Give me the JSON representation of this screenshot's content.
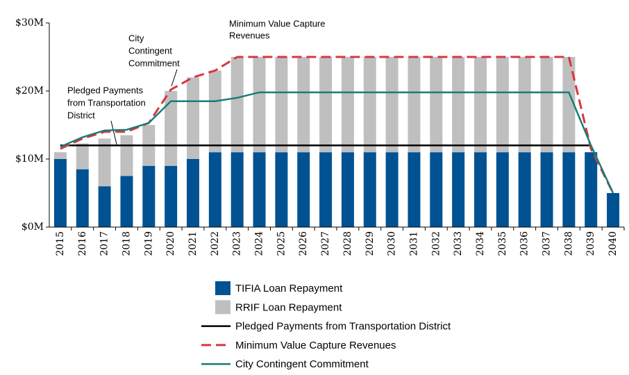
{
  "chart_data": {
    "type": "bar",
    "stacked": true,
    "categories": [
      "2015",
      "2016",
      "2017",
      "2018",
      "2019",
      "2020",
      "2021",
      "2022",
      "2023",
      "2024",
      "2025",
      "2026",
      "2027",
      "2028",
      "2029",
      "2030",
      "2031",
      "2032",
      "2033",
      "2034",
      "2035",
      "2036",
      "2037",
      "2038",
      "2039",
      "2040"
    ],
    "series": [
      {
        "name": "TIFIA Loan Repayment",
        "type": "bar",
        "color": "#005293",
        "values": [
          10,
          8.5,
          6,
          7.5,
          9,
          9,
          10,
          11,
          11,
          11,
          11,
          11,
          11,
          11,
          11,
          11,
          11,
          11,
          11,
          11,
          11,
          11,
          11,
          11,
          11,
          5
        ]
      },
      {
        "name": "RRIF Loan Repayment",
        "type": "bar",
        "color": "#bfbfbf",
        "values": [
          1,
          3.8,
          7,
          6,
          6,
          11,
          12,
          12,
          14,
          14,
          14,
          14,
          14,
          14,
          14,
          14,
          14,
          14,
          14,
          14,
          14,
          14,
          14,
          14,
          0,
          0
        ]
      },
      {
        "name": "Pledged Payments from Transportation District",
        "type": "line",
        "color": "#000000",
        "dashed": false,
        "values": [
          12,
          12,
          12,
          12,
          12,
          12,
          12,
          12,
          12,
          12,
          12,
          12,
          12,
          12,
          12,
          12,
          12,
          12,
          12,
          12,
          12,
          12,
          12,
          12,
          12,
          null
        ]
      },
      {
        "name": "Minimum Value Capture Revenues",
        "type": "line",
        "color": "#d9363e",
        "dashed": true,
        "values": [
          11.5,
          13,
          14,
          14,
          15.3,
          20.2,
          22,
          23,
          25,
          25,
          25,
          25,
          25,
          25,
          25,
          25,
          25,
          25,
          25,
          25,
          25,
          25,
          25,
          25,
          11.5,
          5
        ]
      },
      {
        "name": "City Contingent Commitment",
        "type": "line",
        "color": "#177d78",
        "dashed": false,
        "values": [
          11.8,
          13.2,
          14.2,
          14.3,
          15.3,
          18.5,
          18.5,
          18.5,
          19,
          19.8,
          19.8,
          19.8,
          19.8,
          19.8,
          19.8,
          19.8,
          19.8,
          19.8,
          19.8,
          19.8,
          19.8,
          19.8,
          19.8,
          19.8,
          12,
          5
        ]
      }
    ],
    "ylim": [
      0,
      30
    ],
    "yticks": [
      {
        "value": 0,
        "label": "$0M"
      },
      {
        "value": 10,
        "label": "$10M"
      },
      {
        "value": 20,
        "label": "$20M"
      },
      {
        "value": 30,
        "label": "$30M"
      }
    ],
    "grid": false,
    "legend": "bottom",
    "annotations": [
      {
        "lines": [
          "Minimum Value Capture",
          "Revenues"
        ]
      },
      {
        "lines": [
          "City",
          "Contingent",
          "Commitment"
        ]
      },
      {
        "lines": [
          "Pledged Payments",
          "from Transportation",
          "District"
        ]
      }
    ]
  }
}
